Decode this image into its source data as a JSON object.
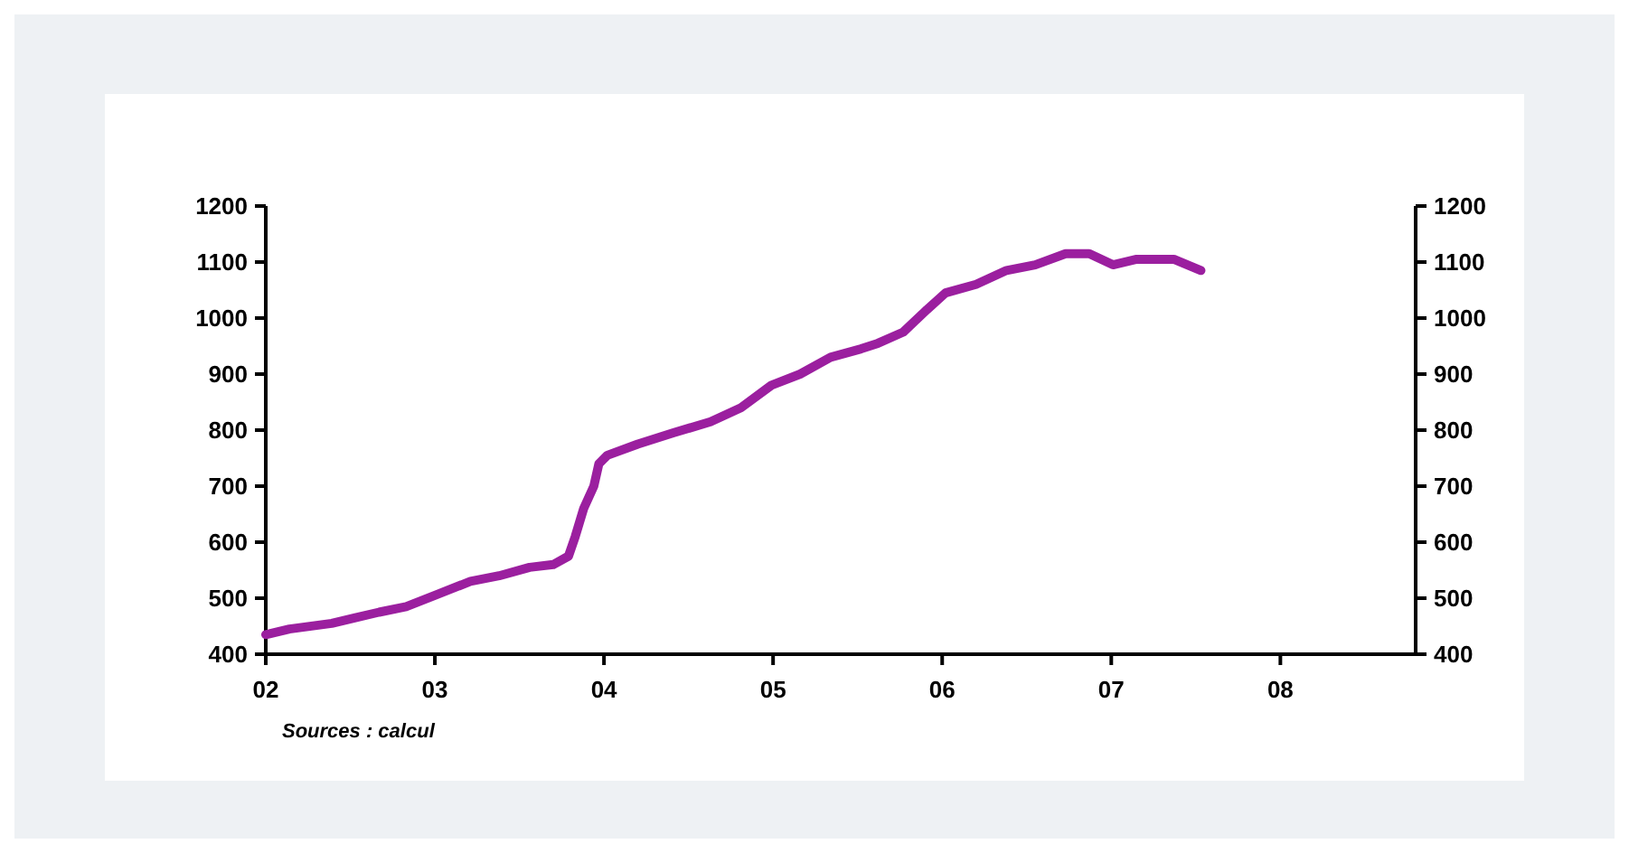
{
  "chart_data": {
    "type": "line",
    "annotations": [
      "Sources : calcul"
    ],
    "x": [
      2002.0,
      2002.14,
      2002.39,
      2002.53,
      2002.67,
      2002.83,
      2003.0,
      2003.21,
      2003.38,
      2003.56,
      2003.7,
      2003.79,
      2003.83,
      2003.88,
      2003.94,
      2003.97,
      2004.02,
      2004.2,
      2004.41,
      2004.63,
      2004.81,
      2004.99,
      2005.16,
      2005.34,
      2005.52,
      2005.62,
      2005.77,
      2005.91,
      2006.02,
      2006.2,
      2006.38,
      2006.55,
      2006.73,
      2006.87,
      2007.01,
      2007.15,
      2007.37,
      2007.53
    ],
    "series": [
      {
        "color": "#9b1f9f",
        "values": [
          435,
          445,
          455,
          465,
          475,
          485,
          505,
          530,
          540,
          555,
          560,
          575,
          610,
          660,
          700,
          740,
          755,
          775,
          795,
          815,
          840,
          880,
          900,
          930,
          945,
          955,
          975,
          1015,
          1045,
          1060,
          1085,
          1095,
          1115,
          1115,
          1095,
          1105,
          1105,
          1085
        ]
      }
    ],
    "xlim": [
      2002,
      2008.8
    ],
    "xticks": [
      {
        "value": 2002,
        "label": "02"
      },
      {
        "value": 2003,
        "label": "03"
      },
      {
        "value": 2004,
        "label": "04"
      },
      {
        "value": 2005,
        "label": "05"
      },
      {
        "value": 2006,
        "label": "06"
      },
      {
        "value": 2007,
        "label": "07"
      },
      {
        "value": 2008,
        "label": "08"
      }
    ],
    "ylim": [
      400,
      1200
    ],
    "yticks": [
      400,
      500,
      600,
      700,
      800,
      900,
      1000,
      1100,
      1200
    ],
    "y2lim": [
      400,
      1200
    ],
    "y2ticks": [
      400,
      500,
      600,
      700,
      800,
      900,
      1000,
      1100,
      1200
    ],
    "marker": "none",
    "line_style": "solid"
  }
}
